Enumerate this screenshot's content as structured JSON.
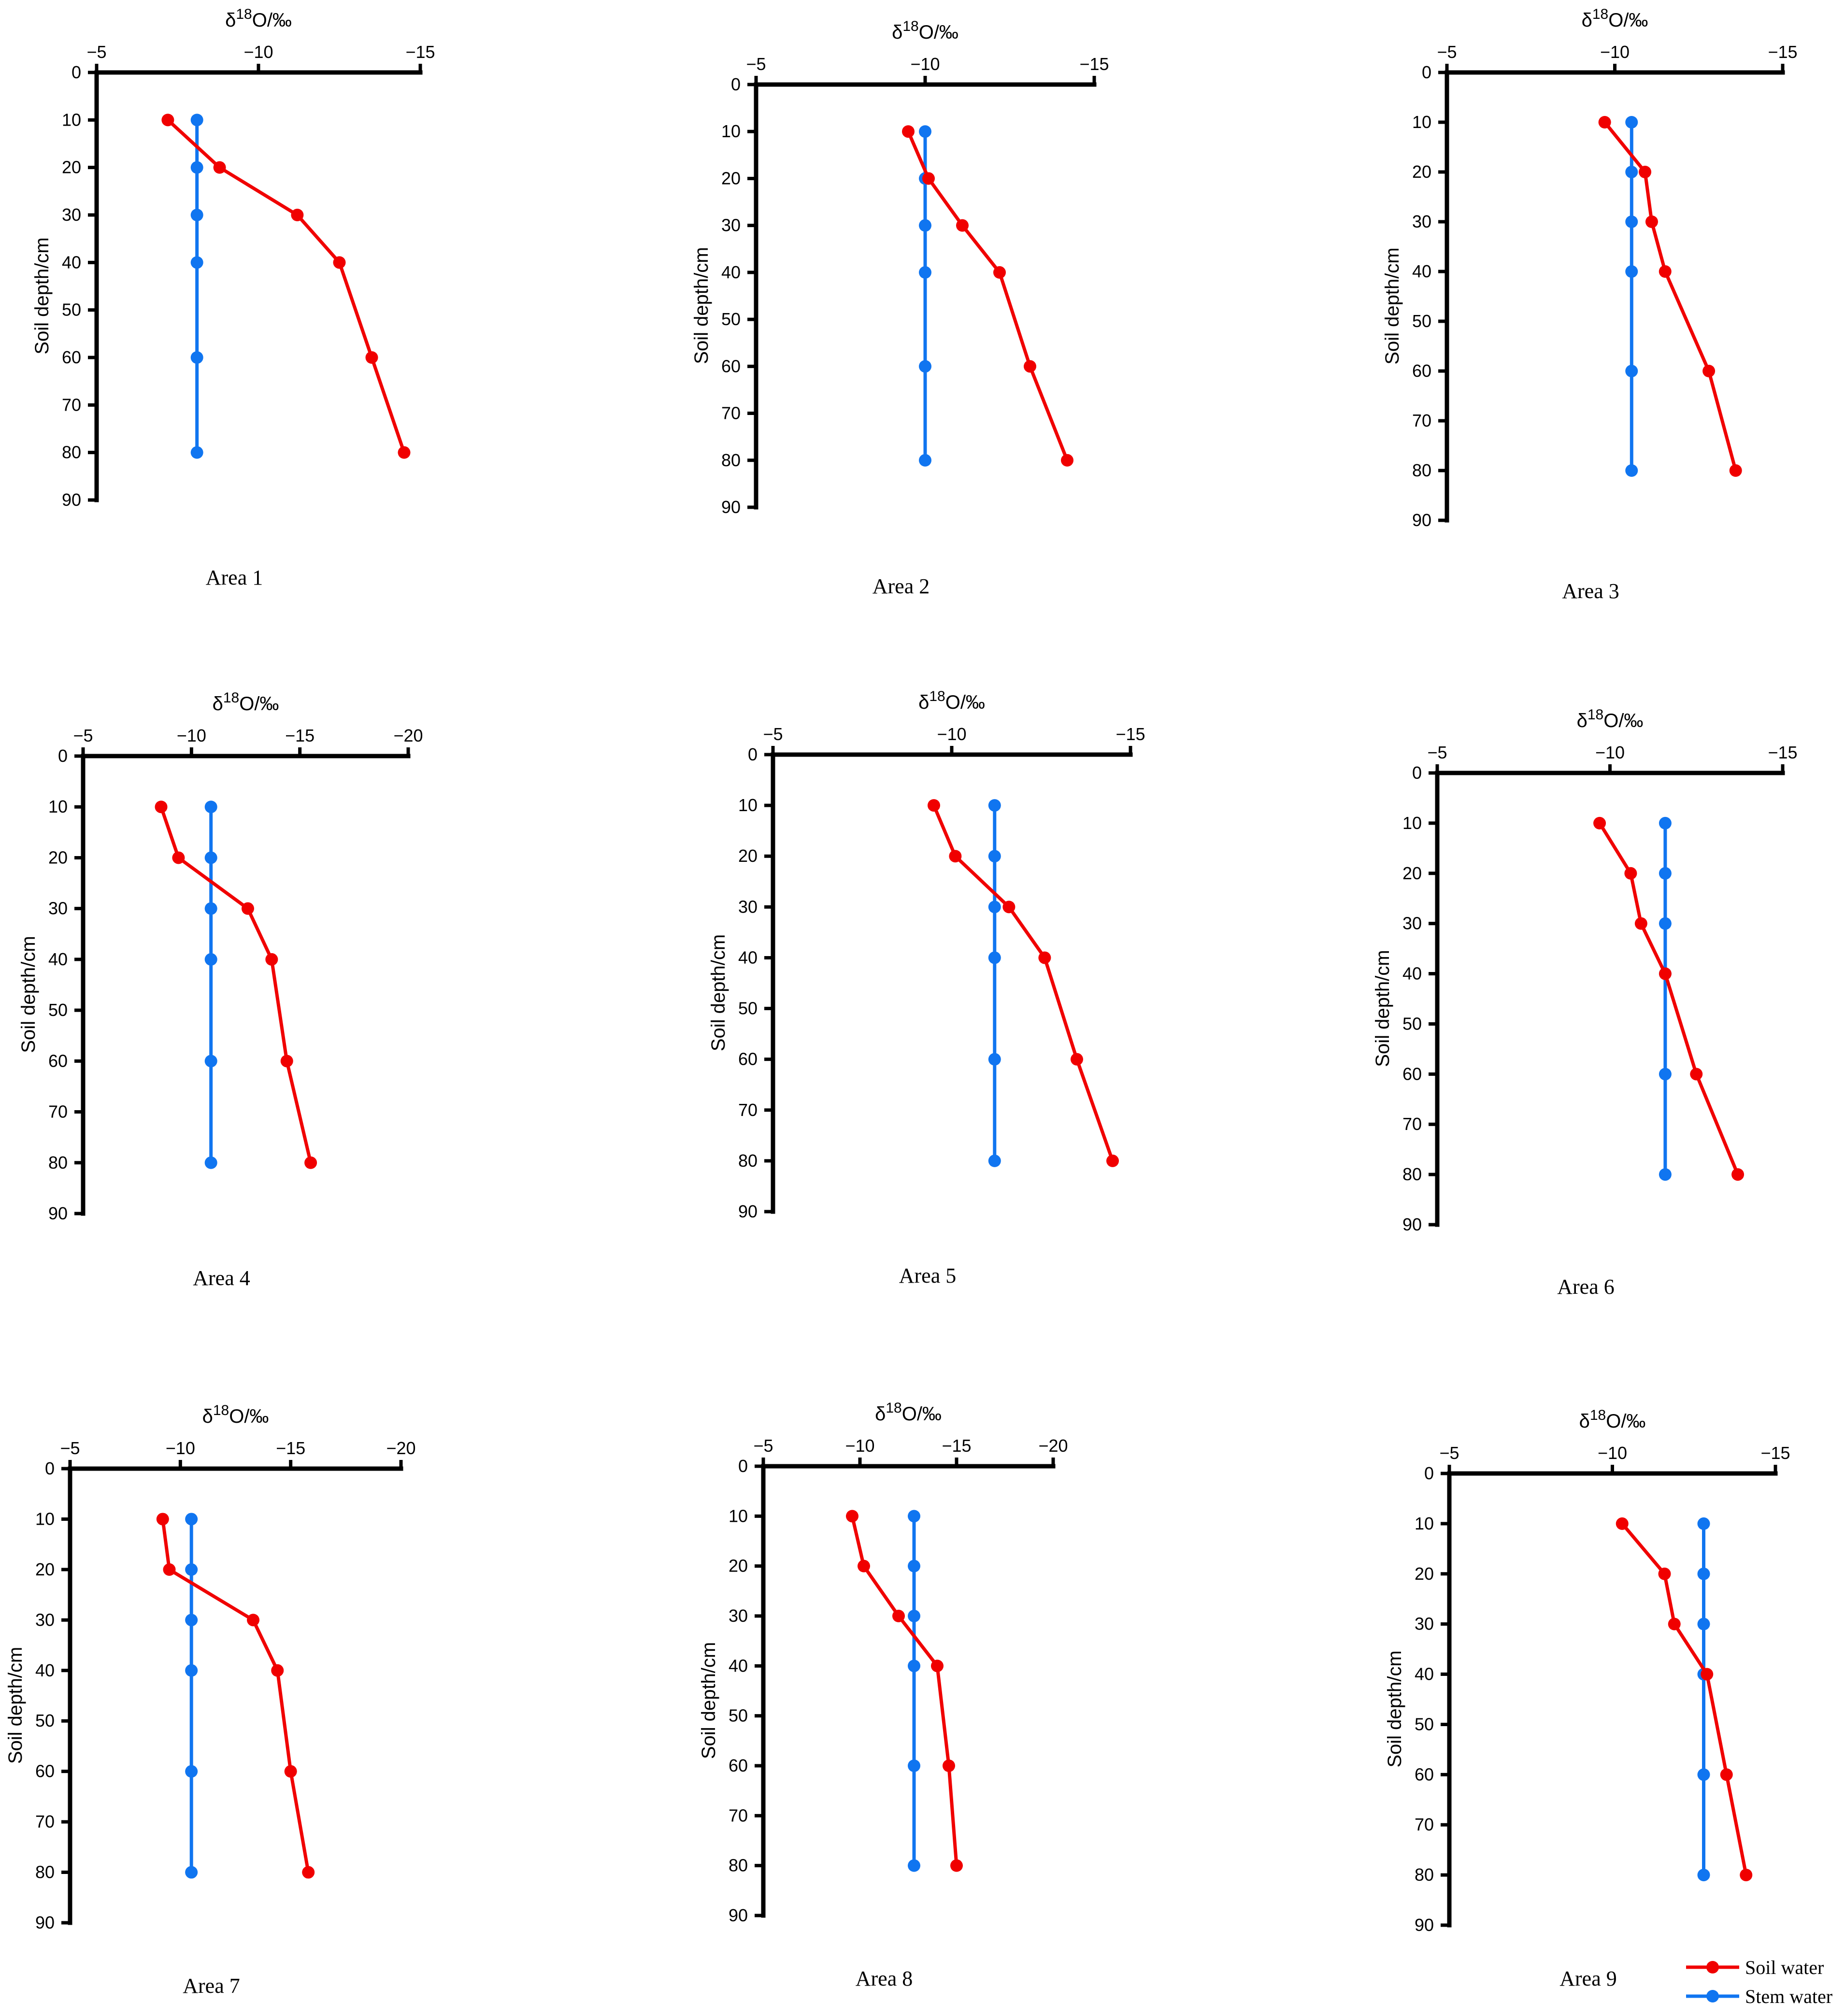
{
  "figure": {
    "legend": {
      "soil_label": "Soil water",
      "stem_label": "Stem water"
    },
    "colors": {
      "soil": "#f00000",
      "stem": "#1075f0"
    }
  },
  "chart_data": [
    {
      "type": "line",
      "title": "Area 1",
      "xlabel_symbol": "δ",
      "xlabel_sup": "18",
      "xlabel_rest": "O/‰",
      "ylabel": "Soil depth/cm",
      "x_ticks": [
        -5,
        -10,
        -15
      ],
      "xlim": [
        -5,
        -15
      ],
      "y_ticks": [
        0,
        10,
        20,
        30,
        40,
        50,
        60,
        70,
        80,
        90
      ],
      "ylim": [
        0,
        90
      ],
      "series": [
        {
          "name": "Soil water",
          "x": [
            -7.2,
            -8.8,
            -11.2,
            -12.5,
            -13.5,
            -14.5
          ],
          "y": [
            10,
            20,
            30,
            40,
            60,
            80
          ]
        },
        {
          "name": "Stem water",
          "x": [
            -8.1,
            -8.1,
            -8.1,
            -8.1,
            -8.1,
            -8.1
          ],
          "y": [
            10,
            20,
            30,
            40,
            60,
            80
          ]
        }
      ]
    },
    {
      "type": "line",
      "title": "Area 2",
      "xlabel_symbol": "δ",
      "xlabel_sup": "18",
      "xlabel_rest": "O/‰",
      "ylabel": "Soil depth/cm",
      "x_ticks": [
        -5,
        -10,
        -15
      ],
      "xlim": [
        -5,
        -15
      ],
      "y_ticks": [
        0,
        10,
        20,
        30,
        40,
        50,
        60,
        70,
        80,
        90
      ],
      "ylim": [
        0,
        90
      ],
      "series": [
        {
          "name": "Soil water",
          "x": [
            -9.5,
            -10.1,
            -11.1,
            -12.2,
            -13.1,
            -14.2
          ],
          "y": [
            10,
            20,
            30,
            40,
            60,
            80
          ]
        },
        {
          "name": "Stem water",
          "x": [
            -10.0,
            -10.0,
            -10.0,
            -10.0,
            -10.0,
            -10.0
          ],
          "y": [
            10,
            20,
            30,
            40,
            60,
            80
          ]
        }
      ]
    },
    {
      "type": "line",
      "title": "Area 3",
      "xlabel_symbol": "δ",
      "xlabel_sup": "18",
      "xlabel_rest": "O/‰",
      "ylabel": "Soil depth/cm",
      "x_ticks": [
        -5,
        -10,
        -15
      ],
      "xlim": [
        -5,
        -15
      ],
      "y_ticks": [
        0,
        10,
        20,
        30,
        40,
        50,
        60,
        70,
        80,
        90
      ],
      "ylim": [
        0,
        90
      ],
      "series": [
        {
          "name": "Soil water",
          "x": [
            -9.7,
            -10.9,
            -11.1,
            -11.5,
            -12.8,
            -13.6
          ],
          "y": [
            10,
            20,
            30,
            40,
            60,
            80
          ]
        },
        {
          "name": "Stem water",
          "x": [
            -10.5,
            -10.5,
            -10.5,
            -10.5,
            -10.5,
            -10.5
          ],
          "y": [
            10,
            20,
            30,
            40,
            60,
            80
          ]
        }
      ]
    },
    {
      "type": "line",
      "title": "Area 4",
      "xlabel_symbol": "δ",
      "xlabel_sup": "18",
      "xlabel_rest": "O/‰",
      "ylabel": "Soil depth/cm",
      "x_ticks": [
        -5,
        -10,
        -15,
        -20
      ],
      "xlim": [
        -5,
        -20
      ],
      "y_ticks": [
        0,
        10,
        20,
        30,
        40,
        50,
        60,
        70,
        80,
        90
      ],
      "ylim": [
        0,
        90
      ],
      "series": [
        {
          "name": "Soil water",
          "x": [
            -8.6,
            -9.4,
            -12.6,
            -13.7,
            -14.4,
            -15.5
          ],
          "y": [
            10,
            20,
            30,
            40,
            60,
            80
          ]
        },
        {
          "name": "Stem water",
          "x": [
            -10.9,
            -10.9,
            -10.9,
            -10.9,
            -10.9,
            -10.9
          ],
          "y": [
            10,
            20,
            30,
            40,
            60,
            80
          ]
        }
      ]
    },
    {
      "type": "line",
      "title": "Area 5",
      "xlabel_symbol": "δ",
      "xlabel_sup": "18",
      "xlabel_rest": "O/‰",
      "ylabel": "Soil depth/cm",
      "x_ticks": [
        -5,
        -10,
        -15
      ],
      "xlim": [
        -5,
        -15
      ],
      "y_ticks": [
        0,
        10,
        20,
        30,
        40,
        50,
        60,
        70,
        80,
        90
      ],
      "ylim": [
        0,
        90
      ],
      "series": [
        {
          "name": "Soil water",
          "x": [
            -9.5,
            -10.1,
            -11.6,
            -12.6,
            -13.5,
            -14.5
          ],
          "y": [
            10,
            20,
            30,
            40,
            60,
            80
          ]
        },
        {
          "name": "Stem water",
          "x": [
            -11.2,
            -11.2,
            -11.2,
            -11.2,
            -11.2,
            -11.2
          ],
          "y": [
            10,
            20,
            30,
            40,
            60,
            80
          ]
        }
      ]
    },
    {
      "type": "line",
      "title": "Area 6",
      "xlabel_symbol": "δ",
      "xlabel_sup": "18",
      "xlabel_rest": "O/‰",
      "ylabel": "Soil depth/cm",
      "x_ticks": [
        -5,
        -10,
        -15
      ],
      "xlim": [
        -5,
        -15
      ],
      "y_ticks": [
        0,
        10,
        20,
        30,
        40,
        50,
        60,
        70,
        80,
        90
      ],
      "ylim": [
        0,
        90
      ],
      "series": [
        {
          "name": "Soil water",
          "x": [
            -9.7,
            -10.6,
            -10.9,
            -11.6,
            -12.5,
            -13.7
          ],
          "y": [
            10,
            20,
            30,
            40,
            60,
            80
          ]
        },
        {
          "name": "Stem water",
          "x": [
            -11.6,
            -11.6,
            -11.6,
            -11.6,
            -11.6,
            -11.6
          ],
          "y": [
            10,
            20,
            30,
            40,
            60,
            80
          ]
        }
      ]
    },
    {
      "type": "line",
      "title": "Area 7",
      "xlabel_symbol": "δ",
      "xlabel_sup": "18",
      "xlabel_rest": "O/‰",
      "ylabel": "Soil depth/cm",
      "x_ticks": [
        -5,
        -10,
        -15,
        -20
      ],
      "xlim": [
        -5,
        -20
      ],
      "y_ticks": [
        0,
        10,
        20,
        30,
        40,
        50,
        60,
        70,
        80,
        90
      ],
      "ylim": [
        0,
        90
      ],
      "series": [
        {
          "name": "Soil water",
          "x": [
            -9.2,
            -9.5,
            -13.3,
            -14.4,
            -15.0,
            -15.8
          ],
          "y": [
            10,
            20,
            30,
            40,
            60,
            80
          ]
        },
        {
          "name": "Stem water",
          "x": [
            -10.5,
            -10.5,
            -10.5,
            -10.5,
            -10.5,
            -10.5
          ],
          "y": [
            10,
            20,
            30,
            40,
            60,
            80
          ]
        }
      ]
    },
    {
      "type": "line",
      "title": "Area 8",
      "xlabel_symbol": "δ",
      "xlabel_sup": "18",
      "xlabel_rest": "O/‰",
      "ylabel": "Soil depth/cm",
      "x_ticks": [
        -5,
        -10,
        -15,
        -20
      ],
      "xlim": [
        -5,
        -20
      ],
      "y_ticks": [
        0,
        10,
        20,
        30,
        40,
        50,
        60,
        70,
        80,
        90
      ],
      "ylim": [
        0,
        90
      ],
      "series": [
        {
          "name": "Soil water",
          "x": [
            -9.6,
            -10.2,
            -12.0,
            -14.0,
            -14.6,
            -15.0
          ],
          "y": [
            10,
            20,
            30,
            40,
            60,
            80
          ]
        },
        {
          "name": "Stem water",
          "x": [
            -12.8,
            -12.8,
            -12.8,
            -12.8,
            -12.8,
            -12.8
          ],
          "y": [
            10,
            20,
            30,
            40,
            60,
            80
          ]
        }
      ]
    },
    {
      "type": "line",
      "title": "Area 9",
      "xlabel_symbol": "δ",
      "xlabel_sup": "18",
      "xlabel_rest": "O/‰",
      "ylabel": "Soil depth/cm",
      "x_ticks": [
        -5,
        -10,
        -15
      ],
      "xlim": [
        -5,
        -15
      ],
      "y_ticks": [
        0,
        10,
        20,
        30,
        40,
        50,
        60,
        70,
        80,
        90
      ],
      "ylim": [
        0,
        90
      ],
      "series": [
        {
          "name": "Soil water",
          "x": [
            -10.3,
            -11.6,
            -11.9,
            -12.9,
            -13.5,
            -14.1
          ],
          "y": [
            10,
            20,
            30,
            40,
            60,
            80
          ]
        },
        {
          "name": "Stem water",
          "x": [
            -12.8,
            -12.8,
            -12.8,
            -12.8,
            -12.8,
            -12.8
          ],
          "y": [
            10,
            20,
            30,
            40,
            60,
            80
          ]
        }
      ]
    }
  ]
}
